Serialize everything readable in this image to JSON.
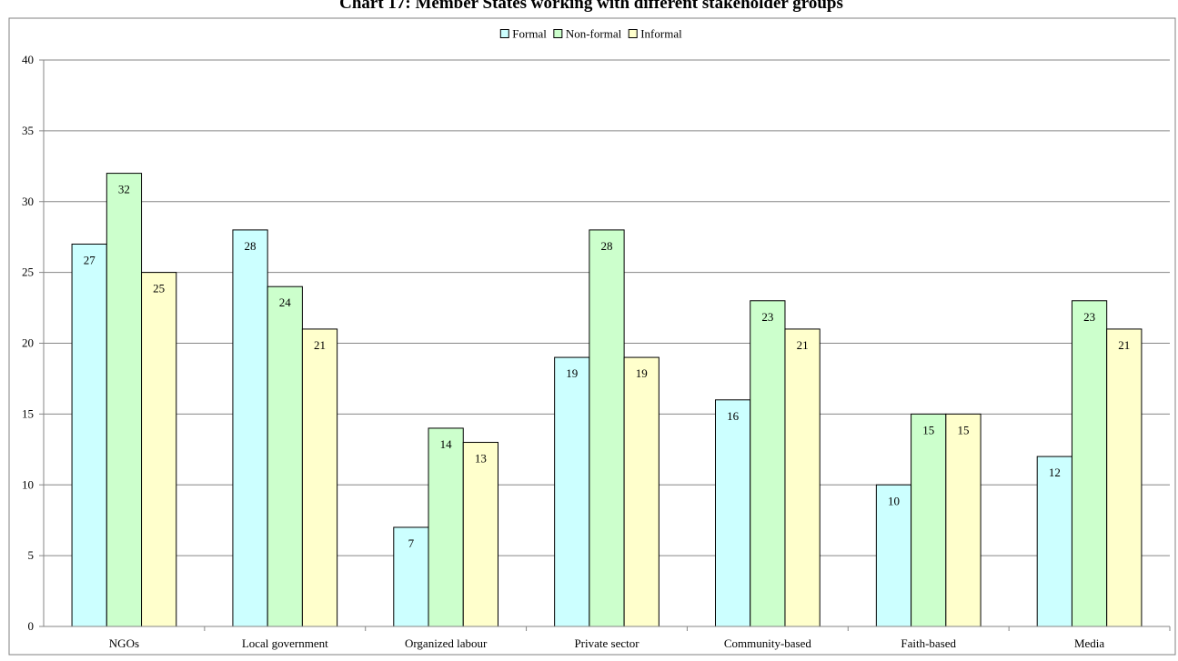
{
  "chart_data": {
    "type": "bar",
    "title": "Chart 17: Member States working with different stakeholder groups",
    "xlabel": "",
    "ylabel": "",
    "ylim": [
      0,
      40
    ],
    "yticks": [
      0,
      5,
      10,
      15,
      20,
      25,
      30,
      35,
      40
    ],
    "grid": true,
    "legend_position": "top",
    "categories": [
      "NGOs",
      "Local government",
      "Organized labour",
      "Private sector",
      "Community-based",
      "Faith-based",
      "Media"
    ],
    "series": [
      {
        "name": "Formal",
        "color": "#ccffff",
        "values": [
          27,
          28,
          7,
          19,
          16,
          10,
          12
        ]
      },
      {
        "name": "Non-formal",
        "color": "#ccffcc",
        "values": [
          32,
          24,
          14,
          28,
          23,
          15,
          23
        ]
      },
      {
        "name": "Informal",
        "color": "#ffffcc",
        "values": [
          25,
          21,
          13,
          19,
          21,
          15,
          21
        ]
      }
    ]
  }
}
